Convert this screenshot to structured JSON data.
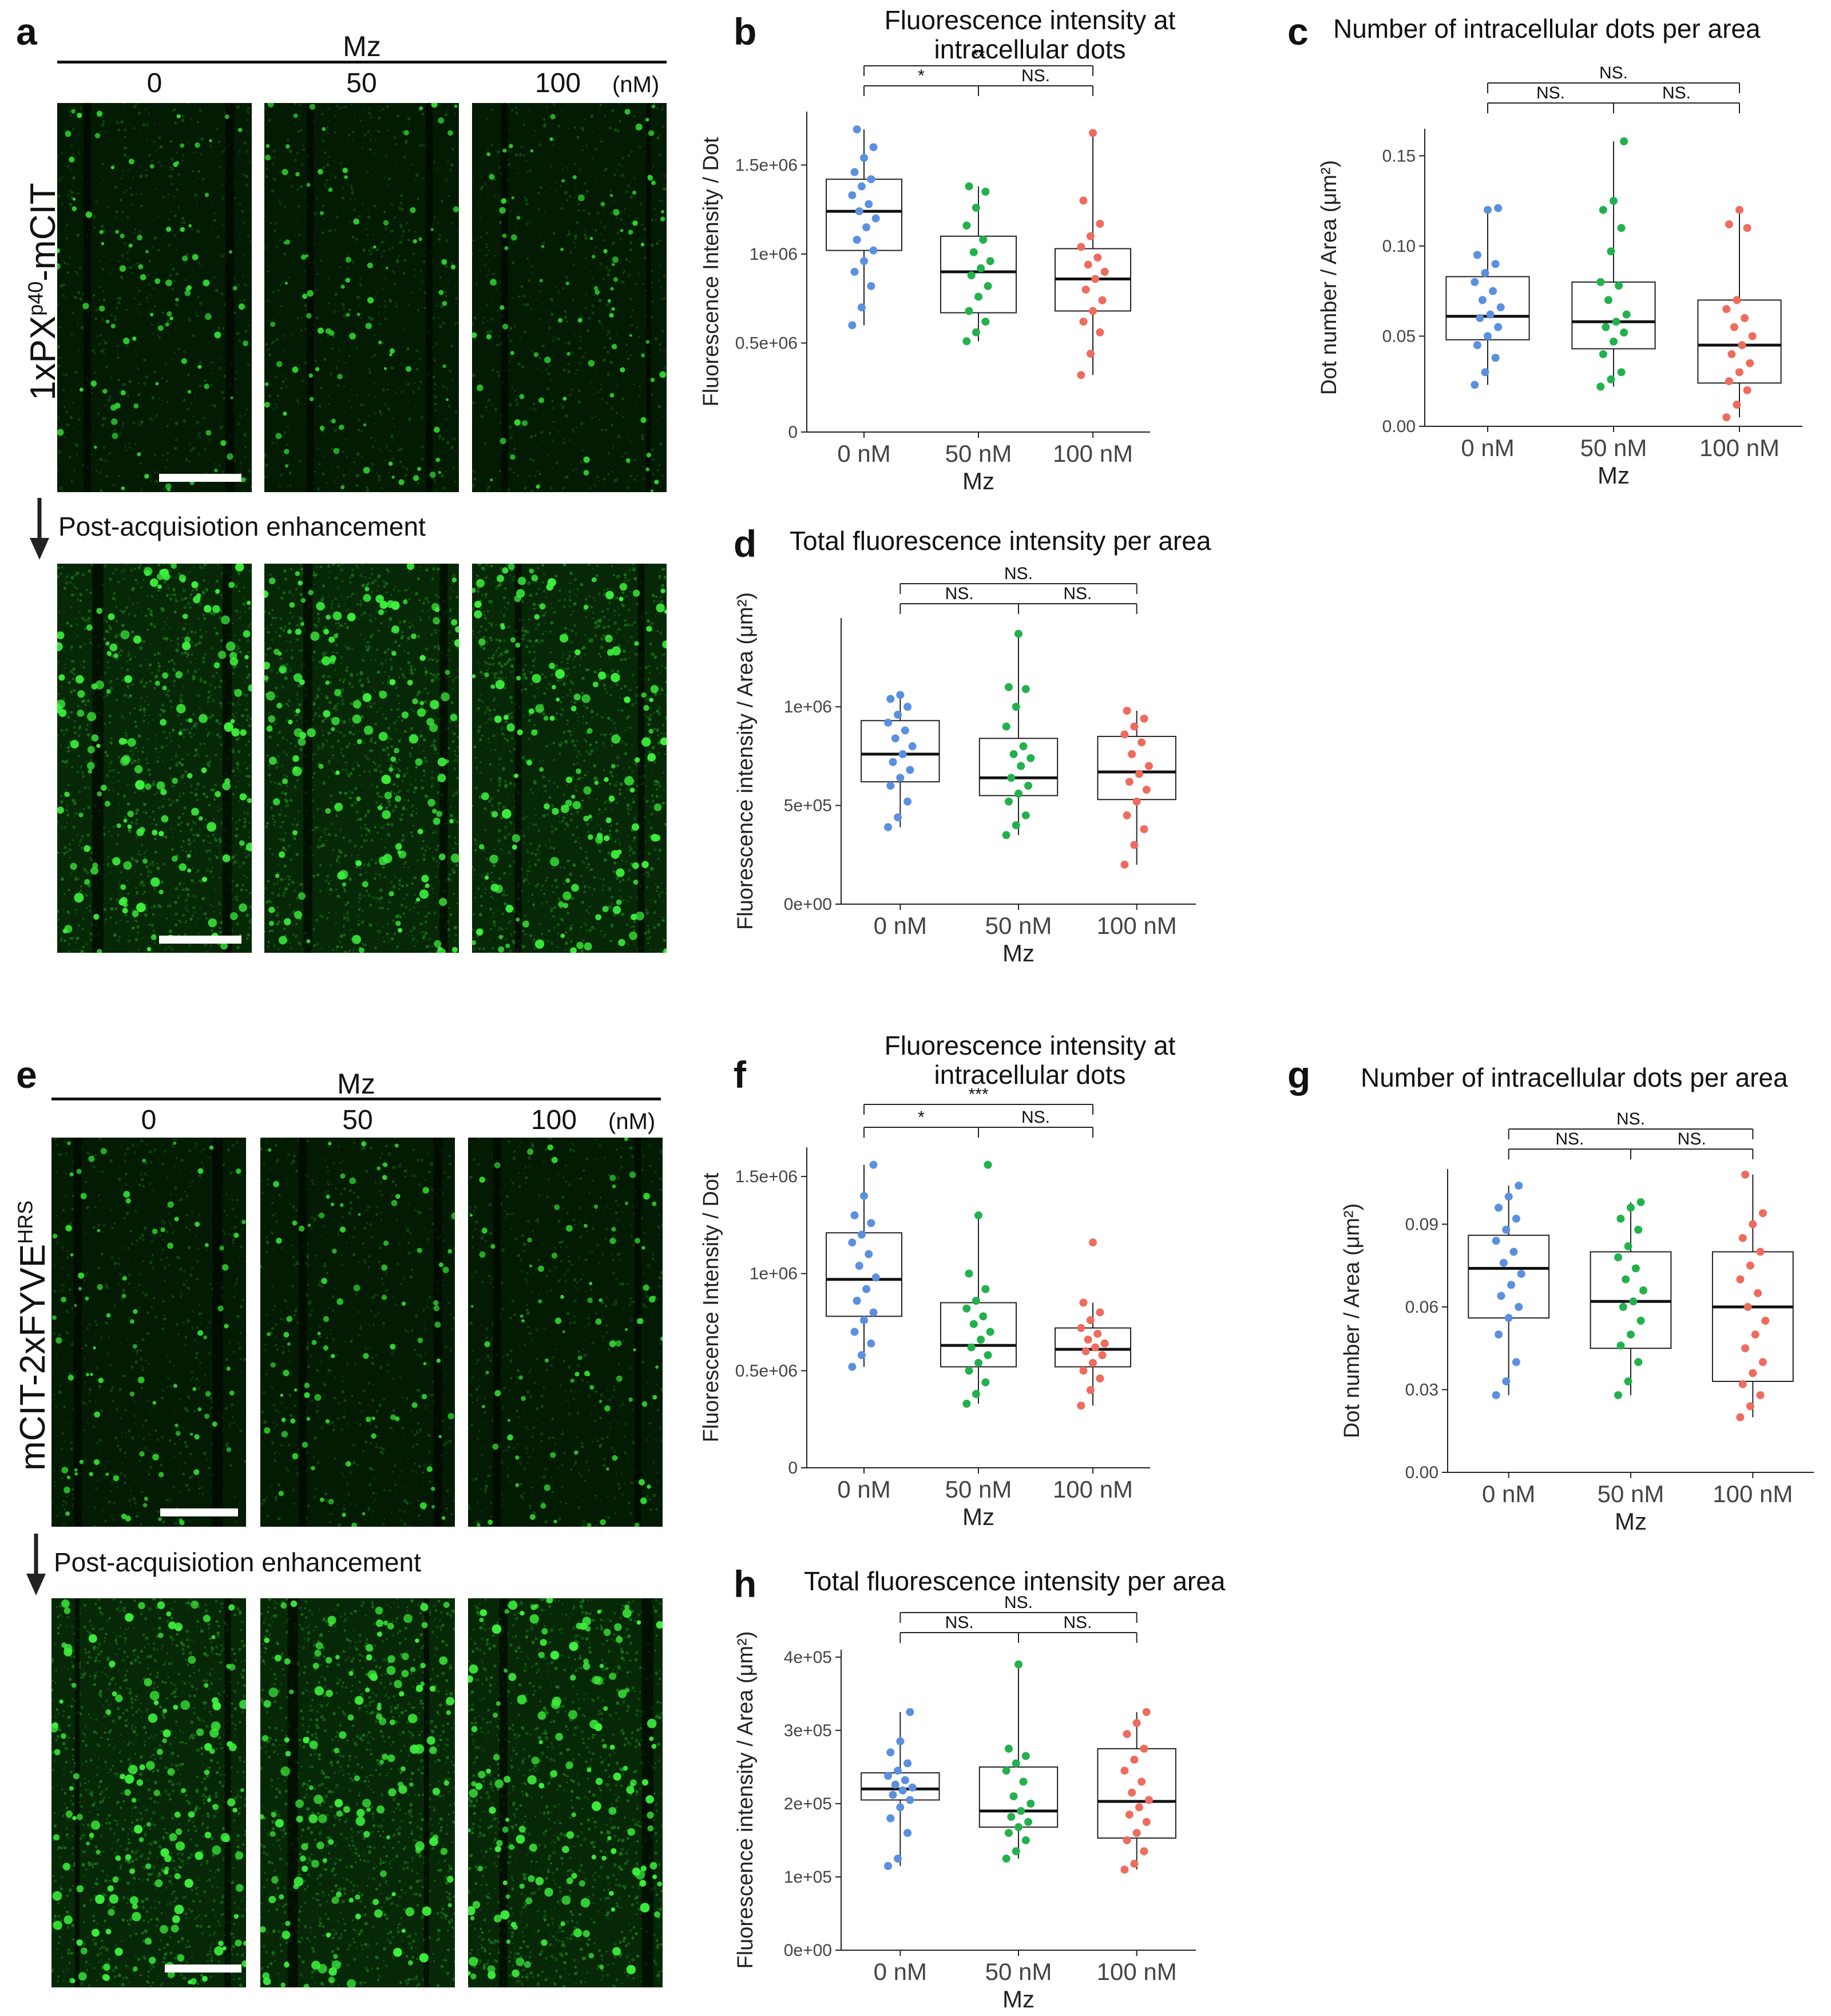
{
  "figure": {
    "micrograph_rows": [
      {
        "letter": "a",
        "header": "Mz",
        "concentrations": [
          "0",
          "50",
          "100"
        ],
        "unit": "(nM)",
        "row_label": "1xPX",
        "row_label_sup": "p40",
        "row_label_rest": "-mCIT",
        "enhancement_label": "Post-acquisiotion enhancement",
        "seed": 11
      },
      {
        "letter": "e",
        "header": "Mz",
        "concentrations": [
          "0",
          "50",
          "100"
        ],
        "unit": "(nM)",
        "row_label": "mCIT-2xFYVE",
        "row_label_sup": "HRS",
        "row_label_rest": "",
        "enhancement_label": "Post-acquisiotion enhancement",
        "seed": 53
      }
    ]
  },
  "chart_data": [
    {
      "letter": "b",
      "type": "box",
      "title_lines": [
        "Fluorescence intensity at",
        "intracellular dots"
      ],
      "ylabel": "Fluorescence Intensity / Dot",
      "xlabel": "Mz",
      "categories": [
        "0 nM",
        "50 nM",
        "100 nM"
      ],
      "colors": [
        "#5b8fe0",
        "#22b14c",
        "#ee6b5e"
      ],
      "ylim": [
        0,
        1800000
      ],
      "yticks": [
        {
          "v": 0,
          "label": "0"
        },
        {
          "v": 500000,
          "label": "0.5e+06"
        },
        {
          "v": 1000000,
          "label": "1e+06"
        },
        {
          "v": 1500000,
          "label": "1.5e+06"
        }
      ],
      "boxes": [
        {
          "min": 600000,
          "q1": 1020000,
          "median": 1240000,
          "q3": 1420000,
          "max": 1700000
        },
        {
          "min": 510000,
          "q1": 670000,
          "median": 900000,
          "q3": 1100000,
          "max": 1380000
        },
        {
          "min": 320000,
          "q1": 680000,
          "median": 860000,
          "q3": 1030000,
          "max": 1680000
        }
      ],
      "points": [
        [
          600000,
          700000,
          820000,
          900000,
          960000,
          1020000,
          1080000,
          1150000,
          1200000,
          1240000,
          1280000,
          1330000,
          1380000,
          1420000,
          1460000,
          1540000,
          1600000,
          1700000
        ],
        [
          510000,
          560000,
          620000,
          680000,
          760000,
          820000,
          880000,
          920000,
          960000,
          1010000,
          1080000,
          1160000,
          1260000,
          1350000,
          1380000
        ],
        [
          320000,
          440000,
          560000,
          620000,
          680000,
          740000,
          800000,
          860000,
          900000,
          940000,
          980000,
          1040000,
          1100000,
          1170000,
          1300000,
          1680000
        ]
      ],
      "significance": [
        {
          "from": 0,
          "to": 2,
          "label": "**",
          "level": 1
        },
        {
          "from": 0,
          "to": 1,
          "label": "*",
          "level": 0
        },
        {
          "from": 1,
          "to": 2,
          "label": "NS.",
          "level": 0
        }
      ]
    },
    {
      "letter": "c",
      "type": "box",
      "title_lines": [
        "Number of intracellular dots per area"
      ],
      "ylabel": "Dot number / Area (μm²)",
      "xlabel": "Mz",
      "categories": [
        "0 nM",
        "50 nM",
        "100 nM"
      ],
      "colors": [
        "#5b8fe0",
        "#22b14c",
        "#ee6b5e"
      ],
      "ylim": [
        0,
        0.165
      ],
      "yticks": [
        {
          "v": 0,
          "label": "0.00"
        },
        {
          "v": 0.05,
          "label": "0.05"
        },
        {
          "v": 0.1,
          "label": "0.10"
        },
        {
          "v": 0.15,
          "label": "0.15"
        }
      ],
      "boxes": [
        {
          "min": 0.023,
          "q1": 0.048,
          "median": 0.061,
          "q3": 0.083,
          "max": 0.12
        },
        {
          "min": 0.022,
          "q1": 0.043,
          "median": 0.058,
          "q3": 0.08,
          "max": 0.158
        },
        {
          "min": 0.005,
          "q1": 0.024,
          "median": 0.045,
          "q3": 0.07,
          "max": 0.12
        }
      ],
      "points": [
        [
          0.023,
          0.03,
          0.038,
          0.045,
          0.05,
          0.055,
          0.06,
          0.062,
          0.066,
          0.07,
          0.075,
          0.08,
          0.085,
          0.09,
          0.095,
          0.12,
          0.121
        ],
        [
          0.022,
          0.026,
          0.03,
          0.04,
          0.047,
          0.052,
          0.055,
          0.058,
          0.062,
          0.07,
          0.078,
          0.08,
          0.097,
          0.11,
          0.12,
          0.125,
          0.158
        ],
        [
          0.005,
          0.012,
          0.02,
          0.025,
          0.03,
          0.035,
          0.04,
          0.045,
          0.05,
          0.055,
          0.06,
          0.065,
          0.07,
          0.11,
          0.112,
          0.12
        ]
      ],
      "significance": [
        {
          "from": 0,
          "to": 2,
          "label": "NS.",
          "level": 1
        },
        {
          "from": 0,
          "to": 1,
          "label": "NS.",
          "level": 0
        },
        {
          "from": 1,
          "to": 2,
          "label": "NS.",
          "level": 0
        }
      ]
    },
    {
      "letter": "d",
      "type": "box",
      "title_lines": [
        "Total fluorescence intensity per area"
      ],
      "ylabel": "Fluorescence intensity / Area (μm²)",
      "xlabel": "Mz",
      "categories": [
        "0 nM",
        "50 nM",
        "100 nM"
      ],
      "colors": [
        "#5b8fe0",
        "#22b14c",
        "#ee6b5e"
      ],
      "ylim": [
        0,
        1450000
      ],
      "yticks": [
        {
          "v": 0,
          "label": "0e+00"
        },
        {
          "v": 500000,
          "label": "5e+05"
        },
        {
          "v": 1000000,
          "label": "1e+06"
        }
      ],
      "boxes": [
        {
          "min": 390000,
          "q1": 620000,
          "median": 760000,
          "q3": 930000,
          "max": 1060000
        },
        {
          "min": 350000,
          "q1": 550000,
          "median": 640000,
          "q3": 840000,
          "max": 1370000
        },
        {
          "min": 200000,
          "q1": 530000,
          "median": 670000,
          "q3": 850000,
          "max": 980000
        }
      ],
      "points": [
        [
          390000,
          440000,
          520000,
          600000,
          640000,
          680000,
          720000,
          760000,
          800000,
          840000,
          880000,
          920000,
          960000,
          1000000,
          1040000,
          1060000
        ],
        [
          350000,
          400000,
          450000,
          520000,
          560000,
          600000,
          640000,
          700000,
          740000,
          760000,
          800000,
          900000,
          1000000,
          1090000,
          1100000,
          1370000
        ],
        [
          200000,
          300000,
          380000,
          450000,
          520000,
          580000,
          620000,
          660000,
          700000,
          760000,
          820000,
          860000,
          900000,
          940000,
          980000
        ]
      ],
      "significance": [
        {
          "from": 0,
          "to": 2,
          "label": "NS.",
          "level": 1
        },
        {
          "from": 0,
          "to": 1,
          "label": "NS.",
          "level": 0
        },
        {
          "from": 1,
          "to": 2,
          "label": "NS.",
          "level": 0
        }
      ]
    },
    {
      "letter": "f",
      "type": "box",
      "title_lines": [
        "Fluorescence intensity at",
        "intracellular dots"
      ],
      "ylabel": "Fluorescence Intensity / Dot",
      "xlabel": "Mz",
      "categories": [
        "0 nM",
        "50 nM",
        "100 nM"
      ],
      "colors": [
        "#5b8fe0",
        "#22b14c",
        "#ee6b5e"
      ],
      "ylim": [
        0,
        1650000
      ],
      "yticks": [
        {
          "v": 0,
          "label": "0"
        },
        {
          "v": 500000,
          "label": "0.5e+06"
        },
        {
          "v": 1000000,
          "label": "1e+06"
        },
        {
          "v": 1500000,
          "label": "1.5e+06"
        }
      ],
      "boxes": [
        {
          "min": 520000,
          "q1": 780000,
          "median": 970000,
          "q3": 1210000,
          "max": 1560000
        },
        {
          "min": 330000,
          "q1": 520000,
          "median": 630000,
          "q3": 850000,
          "max": 1300000
        },
        {
          "min": 320000,
          "q1": 520000,
          "median": 610000,
          "q3": 720000,
          "max": 850000
        }
      ],
      "points": [
        [
          520000,
          580000,
          640000,
          700000,
          760000,
          800000,
          860000,
          920000,
          980000,
          1040000,
          1100000,
          1160000,
          1200000,
          1260000,
          1300000,
          1400000,
          1560000
        ],
        [
          330000,
          380000,
          440000,
          500000,
          540000,
          580000,
          620000,
          660000,
          700000,
          740000,
          780000,
          820000,
          860000,
          920000,
          1000000,
          1300000,
          1560000
        ],
        [
          320000,
          400000,
          460000,
          500000,
          540000,
          580000,
          600000,
          620000,
          640000,
          660000,
          690000,
          720000,
          760000,
          800000,
          850000,
          1160000
        ]
      ],
      "significance": [
        {
          "from": 0,
          "to": 2,
          "label": "***",
          "level": 1
        },
        {
          "from": 0,
          "to": 1,
          "label": "*",
          "level": 0
        },
        {
          "from": 1,
          "to": 2,
          "label": "NS.",
          "level": 0
        }
      ]
    },
    {
      "letter": "g",
      "type": "box",
      "title_lines": [
        "Number of intracellular dots per area"
      ],
      "ylabel": "Dot number / Area (μm²)",
      "xlabel": "Mz",
      "categories": [
        "0 nM",
        "50 nM",
        "100 nM"
      ],
      "colors": [
        "#5b8fe0",
        "#22b14c",
        "#ee6b5e"
      ],
      "ylim": [
        0,
        0.11
      ],
      "yticks": [
        {
          "v": 0,
          "label": "0.00"
        },
        {
          "v": 0.03,
          "label": "0.03"
        },
        {
          "v": 0.06,
          "label": "0.06"
        },
        {
          "v": 0.09,
          "label": "0.09"
        }
      ],
      "boxes": [
        {
          "min": 0.028,
          "q1": 0.056,
          "median": 0.074,
          "q3": 0.086,
          "max": 0.104
        },
        {
          "min": 0.028,
          "q1": 0.045,
          "median": 0.062,
          "q3": 0.08,
          "max": 0.098
        },
        {
          "min": 0.02,
          "q1": 0.033,
          "median": 0.06,
          "q3": 0.08,
          "max": 0.108
        }
      ],
      "points": [
        [
          0.028,
          0.033,
          0.04,
          0.05,
          0.056,
          0.06,
          0.064,
          0.068,
          0.072,
          0.076,
          0.08,
          0.084,
          0.088,
          0.092,
          0.096,
          0.1,
          0.104
        ],
        [
          0.028,
          0.033,
          0.04,
          0.046,
          0.05,
          0.055,
          0.06,
          0.062,
          0.066,
          0.07,
          0.074,
          0.078,
          0.082,
          0.088,
          0.092,
          0.096,
          0.098
        ],
        [
          0.02,
          0.024,
          0.028,
          0.032,
          0.036,
          0.04,
          0.045,
          0.05,
          0.055,
          0.06,
          0.065,
          0.07,
          0.075,
          0.08,
          0.085,
          0.09,
          0.094,
          0.108
        ]
      ],
      "significance": [
        {
          "from": 0,
          "to": 2,
          "label": "NS.",
          "level": 1
        },
        {
          "from": 0,
          "to": 1,
          "label": "NS.",
          "level": 0
        },
        {
          "from": 1,
          "to": 2,
          "label": "NS.",
          "level": 0
        }
      ]
    },
    {
      "letter": "h",
      "type": "box",
      "title_lines": [
        "Total fluorescence intensity per area"
      ],
      "ylabel": "Fluorescence intensity / Area (μm²)",
      "xlabel": "Mz",
      "categories": [
        "0 nM",
        "50 nM",
        "100 nM"
      ],
      "colors": [
        "#5b8fe0",
        "#22b14c",
        "#ee6b5e"
      ],
      "ylim": [
        0,
        410000
      ],
      "yticks": [
        {
          "v": 0,
          "label": "0e+00"
        },
        {
          "v": 100000,
          "label": "1e+05"
        },
        {
          "v": 200000,
          "label": "2e+05"
        },
        {
          "v": 300000,
          "label": "3e+05"
        },
        {
          "v": 400000,
          "label": "4e+05"
        }
      ],
      "boxes": [
        {
          "min": 115000,
          "q1": 205000,
          "median": 220000,
          "q3": 242000,
          "max": 325000
        },
        {
          "min": 125000,
          "q1": 168000,
          "median": 190000,
          "q3": 250000,
          "max": 390000
        },
        {
          "min": 110000,
          "q1": 153000,
          "median": 203000,
          "q3": 275000,
          "max": 325000
        }
      ],
      "points": [
        [
          115000,
          125000,
          160000,
          180000,
          195000,
          205000,
          212000,
          218000,
          222000,
          226000,
          232000,
          238000,
          245000,
          255000,
          270000,
          285000,
          325000
        ],
        [
          125000,
          135000,
          150000,
          160000,
          168000,
          175000,
          182000,
          190000,
          200000,
          210000,
          230000,
          245000,
          255000,
          265000,
          275000,
          390000
        ],
        [
          110000,
          118000,
          135000,
          150000,
          160000,
          175000,
          185000,
          195000,
          205000,
          215000,
          230000,
          245000,
          260000,
          275000,
          295000,
          310000,
          325000
        ]
      ],
      "significance": [
        {
          "from": 0,
          "to": 2,
          "label": "NS.",
          "level": 1
        },
        {
          "from": 0,
          "to": 1,
          "label": "NS.",
          "level": 0
        },
        {
          "from": 1,
          "to": 2,
          "label": "NS.",
          "level": 0
        }
      ]
    }
  ]
}
